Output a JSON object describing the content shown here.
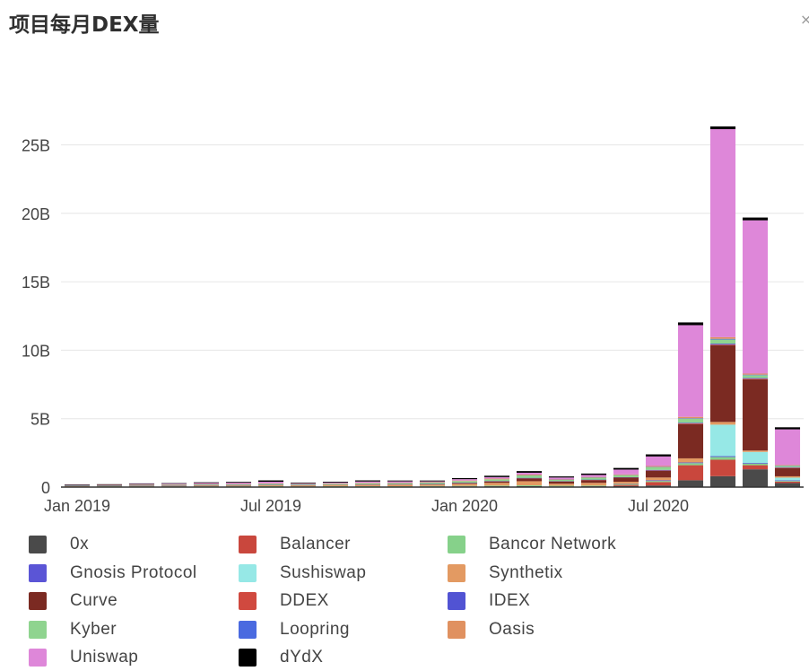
{
  "title": "项目每月DEX量",
  "close_symbol": "×",
  "chart_data": {
    "type": "bar",
    "stacked": true,
    "x": [
      "2019-01",
      "2019-02",
      "2019-03",
      "2019-04",
      "2019-05",
      "2019-06",
      "2019-07",
      "2019-08",
      "2019-09",
      "2019-10",
      "2019-11",
      "2019-12",
      "2020-01",
      "2020-02",
      "2020-03",
      "2020-04",
      "2020-05",
      "2020-06",
      "2020-07",
      "2020-08",
      "2020-09",
      "2020-10",
      "2020-11"
    ],
    "x_tick_labels": [
      {
        "x": "2019-01",
        "label": "Jan 2019"
      },
      {
        "x": "2019-07",
        "label": "Jul 2019"
      },
      {
        "x": "2020-01",
        "label": "Jan 2020"
      },
      {
        "x": "2020-07",
        "label": "Jul 2020"
      }
    ],
    "y_ticks": [
      {
        "value": 0,
        "label": "0"
      },
      {
        "value": 5,
        "label": "5B"
      },
      {
        "value": 10,
        "label": "10B"
      },
      {
        "value": 15,
        "label": "15B"
      },
      {
        "value": 20,
        "label": "20B"
      },
      {
        "value": 25,
        "label": "25B"
      }
    ],
    "ylim": [
      0,
      27
    ],
    "y_unit": "billions",
    "grid": true,
    "legend_position": "bottom",
    "series": [
      {
        "name": "0x",
        "color": "#4a4a4a",
        "values": [
          0.01,
          0.02,
          0.02,
          0.02,
          0.02,
          0.03,
          0.03,
          0.02,
          0.03,
          0.03,
          0.03,
          0.04,
          0.05,
          0.06,
          0.07,
          0.05,
          0.06,
          0.08,
          0.12,
          0.5,
          0.8,
          1.3,
          0.3
        ]
      },
      {
        "name": "Balancer",
        "color": "#c9473d",
        "values": [
          0,
          0,
          0,
          0,
          0,
          0,
          0,
          0,
          0,
          0,
          0,
          0,
          0,
          0,
          0,
          0,
          0,
          0.08,
          0.25,
          1.1,
          1.2,
          0.3,
          0.1
        ]
      },
      {
        "name": "Bancor Network",
        "color": "#86d18a",
        "values": [
          0.03,
          0.03,
          0.03,
          0.03,
          0.04,
          0.03,
          0.04,
          0.03,
          0.04,
          0.04,
          0.03,
          0.04,
          0.04,
          0.05,
          0.06,
          0.05,
          0.05,
          0.06,
          0.08,
          0.15,
          0.2,
          0.12,
          0.05
        ]
      },
      {
        "name": "Gnosis Protocol",
        "color": "#5b55d6",
        "values": [
          0,
          0,
          0,
          0,
          0,
          0,
          0,
          0,
          0,
          0,
          0,
          0,
          0,
          0,
          0,
          0,
          0,
          0.02,
          0.05,
          0.05,
          0.06,
          0.05,
          0.04
        ]
      },
      {
        "name": "Sushiswap",
        "color": "#96e8e6",
        "values": [
          0,
          0,
          0,
          0,
          0,
          0,
          0,
          0,
          0,
          0,
          0,
          0,
          0,
          0,
          0,
          0,
          0,
          0,
          0,
          0,
          2.3,
          0.8,
          0.2
        ]
      },
      {
        "name": "Synthetix",
        "color": "#e39a62",
        "values": [
          0.02,
          0.02,
          0.03,
          0.04,
          0.05,
          0.05,
          0.06,
          0.07,
          0.08,
          0.1,
          0.12,
          0.1,
          0.15,
          0.2,
          0.3,
          0.15,
          0.2,
          0.15,
          0.2,
          0.3,
          0.2,
          0.1,
          0.1
        ]
      },
      {
        "name": "Curve",
        "color": "#7b2a22",
        "values": [
          0,
          0,
          0,
          0,
          0,
          0,
          0,
          0,
          0,
          0,
          0,
          0.02,
          0.05,
          0.1,
          0.2,
          0.15,
          0.2,
          0.3,
          0.5,
          2.5,
          5.6,
          5.2,
          0.6
        ]
      },
      {
        "name": "DDEX",
        "color": "#d0493f",
        "values": [
          0.01,
          0.01,
          0.01,
          0.01,
          0.01,
          0.01,
          0.01,
          0.01,
          0.01,
          0.01,
          0.01,
          0.01,
          0.01,
          0.01,
          0.01,
          0.01,
          0.01,
          0.01,
          0.02,
          0.05,
          0.05,
          0.05,
          0.03
        ]
      },
      {
        "name": "IDEX",
        "color": "#5153d3",
        "values": [
          0.02,
          0.02,
          0.02,
          0.02,
          0.02,
          0.02,
          0.02,
          0.02,
          0.01,
          0.02,
          0.02,
          0.02,
          0.02,
          0.02,
          0.03,
          0.02,
          0.02,
          0.02,
          0.04,
          0.05,
          0.07,
          0.05,
          0.03
        ]
      },
      {
        "name": "Kyber",
        "color": "#8fd48f",
        "values": [
          0.03,
          0.03,
          0.05,
          0.05,
          0.06,
          0.06,
          0.08,
          0.06,
          0.07,
          0.08,
          0.08,
          0.1,
          0.12,
          0.13,
          0.18,
          0.1,
          0.15,
          0.15,
          0.2,
          0.3,
          0.3,
          0.2,
          0.1
        ]
      },
      {
        "name": "Loopring",
        "color": "#4a6ae0",
        "values": [
          0,
          0,
          0,
          0,
          0,
          0,
          0,
          0,
          0,
          0,
          0,
          0,
          0,
          0,
          0.01,
          0.01,
          0.01,
          0.01,
          0.02,
          0.03,
          0.05,
          0.04,
          0.02
        ]
      },
      {
        "name": "Oasis",
        "color": "#e09160",
        "values": [
          0.02,
          0.02,
          0.02,
          0.02,
          0.02,
          0.02,
          0.03,
          0.02,
          0.03,
          0.03,
          0.03,
          0.03,
          0.04,
          0.05,
          0.06,
          0.04,
          0.04,
          0.05,
          0.06,
          0.1,
          0.12,
          0.08,
          0.05
        ]
      },
      {
        "name": "Uniswap",
        "color": "#de87d9",
        "values": [
          0.01,
          0.02,
          0.05,
          0.06,
          0.08,
          0.1,
          0.12,
          0.05,
          0.06,
          0.1,
          0.1,
          0.06,
          0.1,
          0.11,
          0.13,
          0.12,
          0.15,
          0.35,
          0.7,
          6.7,
          15.2,
          11.2,
          2.6
        ]
      },
      {
        "name": "dYdX",
        "color": "#000000",
        "values": [
          0.02,
          0.03,
          0.03,
          0.03,
          0.05,
          0.06,
          0.1,
          0.05,
          0.06,
          0.08,
          0.06,
          0.06,
          0.08,
          0.1,
          0.12,
          0.08,
          0.1,
          0.12,
          0.15,
          0.2,
          0.2,
          0.2,
          0.15
        ]
      }
    ]
  }
}
